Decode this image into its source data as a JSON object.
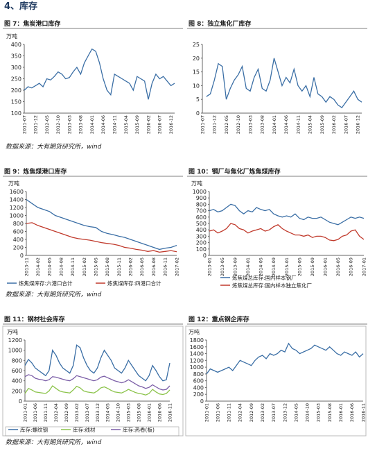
{
  "heading": "4、库存",
  "sources": [
    "数据来源：大有期货研究所，wind",
    "数据来源：大有期货研究所，wind",
    "数据来源：大有期货研究所，wind"
  ],
  "chart_data": [
    {
      "type": "line",
      "title": "图 7：焦炭港口库存",
      "unit": "万吨",
      "ylim": [
        100,
        400
      ],
      "yticks": [
        100,
        150,
        200,
        250,
        300,
        350,
        400
      ],
      "categories": [
        "2011-07",
        null,
        null,
        "2011-12",
        null,
        null,
        "2012-05",
        null,
        null,
        "2012-10",
        null,
        null,
        "2013-03",
        null,
        null,
        "2013-08",
        null,
        null,
        "2014-01",
        null,
        null,
        "2014-06",
        null,
        null,
        "2014-11",
        null,
        null,
        "2015-04",
        null,
        null,
        "2015-09",
        null,
        null,
        "2016-02",
        null,
        null,
        "2016-07",
        null,
        null,
        "2016-12",
        null
      ],
      "series": [
        {
          "color": "#3a6ea5",
          "values": [
            200,
            215,
            210,
            220,
            230,
            215,
            250,
            245,
            260,
            280,
            270,
            250,
            255,
            280,
            300,
            270,
            320,
            350,
            380,
            370,
            320,
            250,
            200,
            180,
            270,
            260,
            250,
            240,
            230,
            200,
            260,
            250,
            240,
            160,
            230,
            270,
            250,
            260,
            240,
            220,
            230
          ]
        }
      ]
    },
    {
      "type": "line",
      "title": "图 8：独立焦化厂库存",
      "ylim": [
        0,
        25
      ],
      "yticks": [
        0,
        5,
        10,
        15,
        20,
        25
      ],
      "categories": [
        "2011-07",
        null,
        null,
        "2011-12",
        null,
        null,
        "2012-05",
        null,
        null,
        "2012-10",
        null,
        null,
        "2013-03",
        null,
        null,
        "2013-08",
        null,
        null,
        "2014-01",
        null,
        null,
        "2014-06",
        null,
        null,
        "2014-11",
        null,
        null,
        "2015-04",
        null,
        null,
        "2015-09",
        null,
        null,
        "2016-02",
        null,
        null,
        "2016-07",
        null,
        null,
        "2016-12",
        null
      ],
      "series": [
        {
          "color": "#3a6ea5",
          "values": [
            null,
            6,
            7,
            12,
            18,
            17,
            5,
            9,
            12,
            14,
            17,
            9,
            8,
            13,
            16,
            9,
            8,
            12,
            20,
            15,
            10,
            13,
            11,
            16,
            10,
            8,
            10,
            6,
            13,
            7,
            6,
            4,
            6,
            5,
            3,
            2,
            4,
            6,
            8,
            5,
            4
          ]
        }
      ]
    },
    {
      "type": "line",
      "title": "图 9：炼焦煤港口库存",
      "unit": "万吨",
      "ylim": [
        0,
        1600
      ],
      "yticks": [
        0,
        200,
        400,
        600,
        800,
        1000,
        1200,
        1400,
        1600
      ],
      "categories": [
        "2013-11",
        null,
        "2014-02",
        null,
        "2014-05",
        null,
        "2014-08",
        null,
        "2014-11",
        null,
        "2015-02",
        null,
        "2015-05",
        null,
        "2015-08",
        null,
        "2015-11",
        null,
        "2016-02",
        null,
        "2016-05",
        null,
        "2016-08",
        null,
        "2016-11",
        null,
        "2017-02"
      ],
      "series": [
        {
          "name": "炼焦煤库存:六港口合计",
          "color": "#3a6ea5",
          "values": [
            1400,
            1300,
            1200,
            1150,
            1100,
            1000,
            950,
            900,
            850,
            800,
            750,
            720,
            700,
            600,
            550,
            520,
            480,
            450,
            400,
            350,
            300,
            250,
            200,
            150,
            180,
            200,
            250
          ]
        },
        {
          "name": "炼焦煤库存:四港口合计",
          "color": "#c0392b",
          "values": [
            800,
            820,
            750,
            700,
            650,
            600,
            550,
            500,
            450,
            420,
            400,
            380,
            350,
            320,
            300,
            280,
            250,
            200,
            180,
            150,
            130,
            100,
            120,
            80,
            100,
            120,
            90
          ]
        }
      ]
    },
    {
      "type": "line",
      "title": "图 10：钢厂与焦化厂炼焦煤库存",
      "unit": "万吨",
      "ylim": [
        0,
        1000
      ],
      "yticks": [
        0,
        100,
        200,
        300,
        400,
        500,
        600,
        700,
        800,
        900,
        1000
      ],
      "categories": [
        "2013-01",
        null,
        null,
        "2013-05",
        null,
        null,
        "2013-09",
        null,
        null,
        "2014-01",
        null,
        null,
        "2014-05",
        null,
        null,
        "2014-09",
        null,
        null,
        "2015-01",
        null,
        null,
        "2015-05",
        null,
        null,
        "2015-09",
        null,
        null,
        "2016-01",
        null,
        null,
        "2016-05",
        null,
        null,
        "2016-09",
        null,
        null,
        "2017-01"
      ],
      "series": [
        {
          "name": "炼焦煤总库存:国内样本钢厂",
          "color": "#3a6ea5",
          "values": [
            700,
            720,
            680,
            700,
            750,
            800,
            780,
            700,
            650,
            700,
            680,
            750,
            720,
            700,
            720,
            650,
            620,
            600,
            620,
            600,
            650,
            580,
            560,
            600,
            580,
            580,
            600,
            560,
            520,
            500,
            480,
            520,
            560,
            600,
            580,
            600,
            580
          ]
        },
        {
          "name": "炼焦煤总库存:国内样本独立焦化厂",
          "color": "#c0392b",
          "values": [
            380,
            400,
            350,
            380,
            420,
            500,
            480,
            420,
            400,
            350,
            380,
            400,
            420,
            380,
            400,
            450,
            480,
            420,
            380,
            350,
            320,
            320,
            300,
            320,
            280,
            300,
            300,
            280,
            240,
            230,
            250,
            300,
            320,
            380,
            400,
            300,
            250
          ]
        }
      ]
    },
    {
      "type": "line",
      "title": "图 11：钢材社会库存",
      "unit": "万吨",
      "ylim": [
        0,
        1200
      ],
      "yticks": [
        0,
        200,
        400,
        600,
        800,
        1000,
        1200
      ],
      "categories": [
        "2011-01",
        null,
        null,
        "2011-06",
        null,
        null,
        "2011-11",
        null,
        null,
        "2012-04",
        null,
        null,
        "2012-09",
        null,
        null,
        "2013-02",
        null,
        null,
        "2013-07",
        null,
        null,
        "2013-12",
        null,
        null,
        "2014-05",
        null,
        null,
        "2014-10",
        null,
        null,
        "2015-03",
        null,
        null,
        "2015-08",
        null,
        null,
        "2016-01",
        null,
        null,
        "2016-06",
        null,
        null,
        "2016-11"
      ],
      "series": [
        {
          "name": "库存:螺纹钢",
          "color": "#3a6ea5",
          "values": [
            700,
            820,
            750,
            650,
            600,
            550,
            500,
            600,
            1000,
            900,
            750,
            650,
            600,
            550,
            700,
            1100,
            1050,
            850,
            700,
            600,
            550,
            650,
            850,
            1000,
            900,
            800,
            650,
            600,
            550,
            650,
            800,
            700,
            600,
            500,
            450,
            400,
            500,
            700,
            600,
            480,
            400,
            420,
            750
          ]
        },
        {
          "name": "库存:线材",
          "color": "#8bc34a",
          "values": [
            150,
            250,
            220,
            180,
            170,
            160,
            150,
            200,
            300,
            250,
            200,
            180,
            170,
            160,
            220,
            290,
            260,
            200,
            180,
            170,
            160,
            200,
            260,
            280,
            250,
            210,
            180,
            170,
            160,
            190,
            230,
            200,
            170,
            150,
            140,
            120,
            150,
            230,
            180,
            140,
            130,
            150,
            220
          ]
        },
        {
          "name": "库存:热卷(板)",
          "color": "#7b5ea7",
          "values": [
            480,
            520,
            500,
            450,
            430,
            420,
            400,
            420,
            480,
            470,
            450,
            430,
            410,
            400,
            440,
            500,
            480,
            460,
            440,
            420,
            400,
            420,
            470,
            490,
            460,
            430,
            400,
            380,
            360,
            380,
            420,
            380,
            340,
            300,
            280,
            250,
            270,
            320,
            280,
            240,
            220,
            230,
            300
          ]
        }
      ]
    },
    {
      "type": "line",
      "title": "图 12：重点钢企库存",
      "unit": "万吨",
      "ylim": [
        0,
        1800
      ],
      "yticks": [
        0,
        200,
        400,
        600,
        800,
        1000,
        1200,
        1400,
        1600,
        1800
      ],
      "categories": [
        "2011-01",
        null,
        null,
        "2011-06",
        null,
        null,
        "2011-11",
        null,
        null,
        "2012-04",
        null,
        null,
        "2012-09",
        null,
        null,
        "2013-02",
        null,
        null,
        "2013-07",
        null,
        null,
        "2013-12",
        null,
        null,
        "2014-05",
        null,
        null,
        "2014-10",
        null,
        null,
        "2015-03",
        null,
        null,
        "2015-08",
        null,
        null,
        "2016-01",
        null,
        null,
        "2016-06",
        null,
        null,
        "2016-11"
      ],
      "series": [
        {
          "color": "#3a6ea5",
          "values": [
            800,
            950,
            900,
            850,
            900,
            950,
            1000,
            900,
            1050,
            1200,
            1150,
            1100,
            1050,
            1200,
            1300,
            1350,
            1250,
            1400,
            1350,
            1400,
            1500,
            1450,
            1700,
            1550,
            1500,
            1400,
            1450,
            1500,
            1550,
            1650,
            1600,
            1550,
            1500,
            1600,
            1500,
            1400,
            1350,
            1450,
            1400,
            1350,
            1450,
            1300,
            1400
          ]
        }
      ]
    }
  ]
}
